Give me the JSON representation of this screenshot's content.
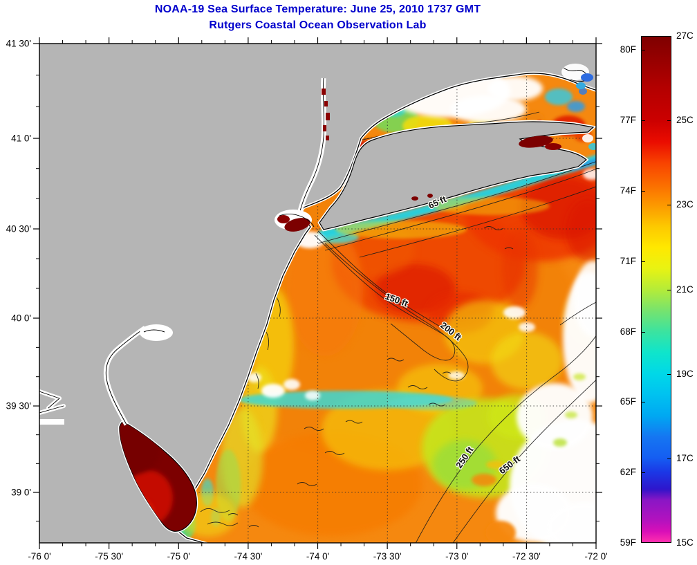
{
  "titles": {
    "line1": "NOAA-19 Sea Surface Temperature:  June 25, 2010 1737 GMT",
    "line2": "Rutgers Coastal Ocean Observation Lab",
    "color": "#0000cc"
  },
  "map": {
    "x_axis_ticks": [
      "-76 0'",
      "-75 30'",
      "-75 0'",
      "-74 30'",
      "-74 0'",
      "-73 30'",
      "-73 0'",
      "-72 30'",
      "-72 0'"
    ],
    "y_axis_ticks": [
      "41 30'",
      "41 0'",
      "40 30'",
      "40 0'",
      "39 30'",
      "39 0'"
    ],
    "contour_labels": [
      "65 ft",
      "150 ft",
      "200 ft",
      "250 ft",
      "650 ft"
    ],
    "land_color": "#b5b5b5",
    "cloud_color": "#ffffff",
    "region": "Mid-Atlantic Bight: New Jersey, Delaware Bay, Long Island"
  },
  "colorbar": {
    "fahrenheit_labels": [
      "80F",
      "77F",
      "74F",
      "71F",
      "68F",
      "65F",
      "62F",
      "59F"
    ],
    "fahrenheit_values": [
      80,
      77,
      74,
      71,
      68,
      65,
      62,
      59
    ],
    "celsius_labels": [
      "27C",
      "25C",
      "23C",
      "21C",
      "19C",
      "17C",
      "15C"
    ],
    "celsius_values": [
      27,
      25,
      23,
      21,
      19,
      17,
      15
    ],
    "range_celsius": [
      15,
      27
    ],
    "gradient_stops": [
      [
        "#7f0000",
        0
      ],
      [
        "#990000",
        5
      ],
      [
        "#b30000",
        10
      ],
      [
        "#cc0000",
        16.7
      ],
      [
        "#ea0c00",
        20.8
      ],
      [
        "#f84300",
        25
      ],
      [
        "#fb6c00",
        29.2
      ],
      [
        "#fc9800",
        33.3
      ],
      [
        "#fdc800",
        37.5
      ],
      [
        "#ffe800",
        41.7
      ],
      [
        "#e9f312",
        45.8
      ],
      [
        "#b5ec38",
        50
      ],
      [
        "#77e36e",
        54.2
      ],
      [
        "#3ce39f",
        58.3
      ],
      [
        "#0fe5cb",
        62.5
      ],
      [
        "#00d8e8",
        66.7
      ],
      [
        "#00c2f0",
        70.8
      ],
      [
        "#00a8f2",
        75
      ],
      [
        "#1576f2",
        79.2
      ],
      [
        "#155ef2",
        83.3
      ],
      [
        "#1b38e6",
        86.1
      ],
      [
        "#2e16cc",
        89.5
      ],
      [
        "#3d14c8",
        89.8
      ],
      [
        "#8a16c5",
        91.7
      ],
      [
        "#b512be",
        95.8
      ],
      [
        "#d90fb8",
        97.9
      ],
      [
        "#ff2fae",
        100
      ]
    ]
  }
}
